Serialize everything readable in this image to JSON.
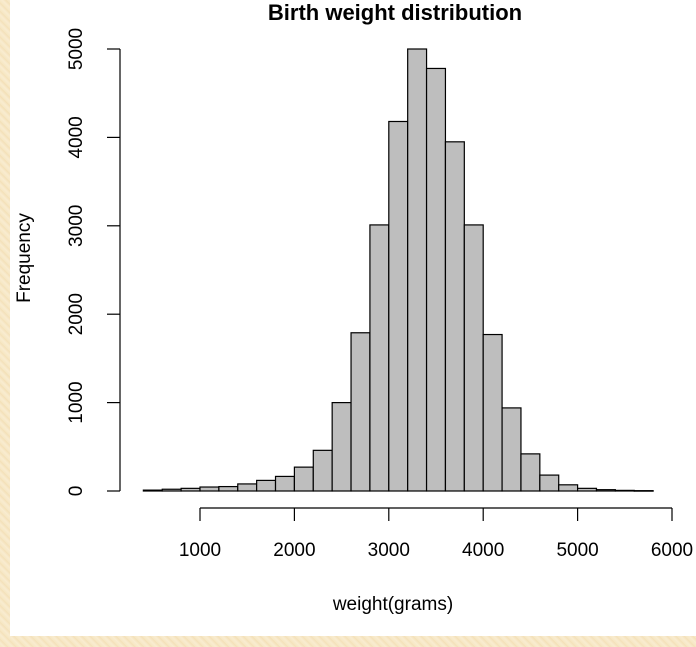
{
  "chart_data": {
    "type": "bar",
    "title": "Birth weight distribution",
    "xlabel": "weight(grams)",
    "ylabel": "Frequency",
    "bin_width": 200,
    "bins": [
      {
        "start": 400,
        "end": 600,
        "value": 10
      },
      {
        "start": 600,
        "end": 800,
        "value": 20
      },
      {
        "start": 800,
        "end": 1000,
        "value": 30
      },
      {
        "start": 1000,
        "end": 1200,
        "value": 45
      },
      {
        "start": 1200,
        "end": 1400,
        "value": 50
      },
      {
        "start": 1400,
        "end": 1600,
        "value": 80
      },
      {
        "start": 1600,
        "end": 1800,
        "value": 120
      },
      {
        "start": 1800,
        "end": 2000,
        "value": 165
      },
      {
        "start": 2000,
        "end": 2200,
        "value": 270
      },
      {
        "start": 2200,
        "end": 2400,
        "value": 460
      },
      {
        "start": 2400,
        "end": 2600,
        "value": 1000
      },
      {
        "start": 2600,
        "end": 2800,
        "value": 1790
      },
      {
        "start": 2800,
        "end": 3000,
        "value": 3010
      },
      {
        "start": 3000,
        "end": 3200,
        "value": 4180
      },
      {
        "start": 3200,
        "end": 3400,
        "value": 5000
      },
      {
        "start": 3400,
        "end": 3600,
        "value": 4780
      },
      {
        "start": 3600,
        "end": 3800,
        "value": 3950
      },
      {
        "start": 3800,
        "end": 4000,
        "value": 3010
      },
      {
        "start": 4000,
        "end": 4200,
        "value": 1770
      },
      {
        "start": 4200,
        "end": 4400,
        "value": 940
      },
      {
        "start": 4400,
        "end": 4600,
        "value": 420
      },
      {
        "start": 4600,
        "end": 4800,
        "value": 180
      },
      {
        "start": 4800,
        "end": 5000,
        "value": 70
      },
      {
        "start": 5000,
        "end": 5200,
        "value": 30
      },
      {
        "start": 5200,
        "end": 5400,
        "value": 15
      },
      {
        "start": 5400,
        "end": 5600,
        "value": 7
      },
      {
        "start": 5600,
        "end": 5800,
        "value": 4
      }
    ],
    "x_ticks": [
      1000,
      2000,
      3000,
      4000,
      5000,
      6000
    ],
    "y_ticks": [
      0,
      1000,
      2000,
      3000,
      4000,
      5000
    ],
    "xlim": [
      400,
      6000
    ],
    "ylim": [
      0,
      5000
    ],
    "bar_color": "#bebebe",
    "bar_border": "#000000",
    "grid": false
  }
}
